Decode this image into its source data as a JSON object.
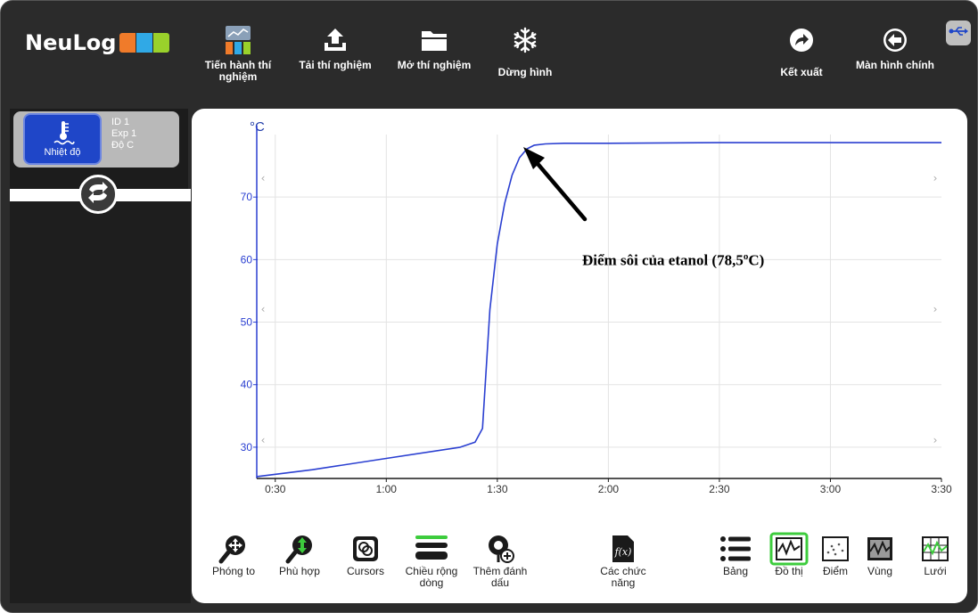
{
  "app": {
    "logo_text": "NeuLog"
  },
  "toolbar": [
    {
      "label": "Tiến hành thí nghiệm",
      "icon": "run-experiment-icon"
    },
    {
      "label": "Tải thí nghiệm",
      "icon": "upload-icon"
    },
    {
      "label": "Mở thí nghiệm",
      "icon": "folder-icon"
    },
    {
      "label": "Dừng hình",
      "icon": "snowflake-icon"
    },
    {
      "label": "Kết xuất",
      "icon": "export-icon"
    },
    {
      "label": "Màn hình chính",
      "icon": "back-icon"
    }
  ],
  "sensor": {
    "name": "Nhiệt độ",
    "id": "ID 1",
    "exp": "Exp 1",
    "unit": "Độ C"
  },
  "chart_data": {
    "type": "line",
    "ylabel": "°C",
    "xlabel": "",
    "title": "",
    "x_ticks": [
      "0:30",
      "1:00",
      "1:30",
      "2:00",
      "2:30",
      "3:00",
      "3:30"
    ],
    "y_ticks": [
      30,
      40,
      50,
      60,
      70
    ],
    "xlim": [
      25,
      210
    ],
    "ylim": [
      25,
      80
    ],
    "grid": true,
    "series_color": "#2a3fd1",
    "x": [
      25,
      40,
      60,
      80,
      84,
      86,
      88,
      90,
      92,
      94,
      96,
      98,
      100,
      103,
      108,
      120,
      150,
      180,
      210
    ],
    "y": [
      25.3,
      26.4,
      28.2,
      30.0,
      30.8,
      33.0,
      52.0,
      62.5,
      69.0,
      73.5,
      76.3,
      77.7,
      78.3,
      78.5,
      78.6,
      78.6,
      78.7,
      78.7,
      78.7
    ]
  },
  "annotation": {
    "text": "Điểm sôi của etanol (78,5",
    "sup": "o",
    "suffix": "C)"
  },
  "bottom_tools": [
    {
      "label": "Phóng to",
      "icon": "zoom-icon"
    },
    {
      "label": "Phù hợp",
      "icon": "fit-icon"
    },
    {
      "label": "Cursors",
      "icon": "cursors-icon"
    },
    {
      "label": "Chiều rộng dòng",
      "icon": "line-width-icon"
    },
    {
      "label": "Thêm đánh dấu",
      "icon": "add-marker-icon"
    },
    {
      "label": "Các chức năng",
      "icon": "functions-icon"
    },
    {
      "label": "Bảng",
      "icon": "table-icon"
    },
    {
      "label": "Đồ thị",
      "icon": "graph-icon"
    },
    {
      "label": "Điểm",
      "icon": "points-icon"
    },
    {
      "label": "Vùng",
      "icon": "area-icon"
    },
    {
      "label": "Lưới",
      "icon": "grid-icon"
    }
  ]
}
